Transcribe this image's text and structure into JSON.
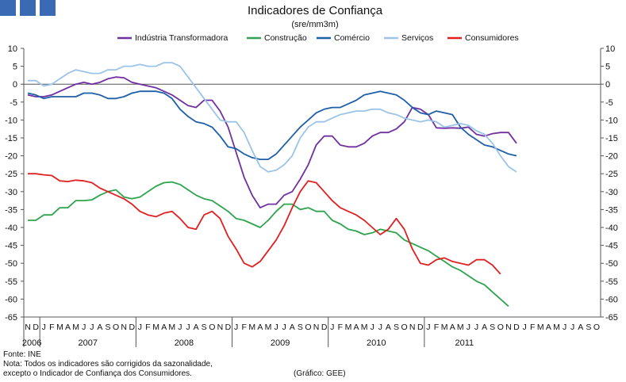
{
  "logo": {
    "squares": 3,
    "color": "#3a6ab3"
  },
  "footer": {
    "source": "Fonte: INE",
    "note1": "Nota: Todos os indicadores são corrigidos da sazonalidade,",
    "note2": "excepto o Indicador de Confiança dos Consumidores.",
    "credit": "(Gráfico: GEE)"
  },
  "chart_data": {
    "type": "line",
    "title": "Indicadores de Confiança",
    "subtitle": "(sre/mm3m)",
    "legend_position": "top",
    "ylim": [
      -65,
      10
    ],
    "yticks": [
      10,
      5,
      0,
      -5,
      -10,
      -15,
      -20,
      -25,
      -30,
      -35,
      -40,
      -45,
      -50,
      -55,
      -60,
      -65
    ],
    "grid": false,
    "month_labels": [
      "N",
      "D",
      "J",
      "F",
      "M",
      "A",
      "M",
      "J",
      "J",
      "A",
      "S",
      "O",
      "N",
      "D",
      "J",
      "F",
      "M",
      "A",
      "M",
      "J",
      "J",
      "A",
      "S",
      "O",
      "N",
      "D",
      "J",
      "F",
      "M",
      "A",
      "M",
      "J",
      "J",
      "A",
      "S",
      "O",
      "N",
      "D",
      "J",
      "F",
      "M",
      "A",
      "M",
      "J",
      "J",
      "A",
      "S",
      "O",
      "N",
      "D",
      "J",
      "F",
      "M",
      "A",
      "M",
      "J",
      "J",
      "A",
      "S",
      "O",
      "N",
      "D",
      "J",
      "F",
      "M",
      "A",
      "M",
      "J",
      "J",
      "A",
      "S",
      "O"
    ],
    "year_labels": [
      {
        "label": "2006",
        "start": 0,
        "end": 1
      },
      {
        "label": "2007",
        "start": 2,
        "end": 13
      },
      {
        "label": "2008",
        "start": 14,
        "end": 25
      },
      {
        "label": "2009",
        "start": 26,
        "end": 37
      },
      {
        "label": "2010",
        "start": 38,
        "end": 49
      },
      {
        "label": "2011",
        "start": 50,
        "end": 59
      }
    ],
    "series": [
      {
        "name": "Indústria Transformadora",
        "color": "#7030a0",
        "values": [
          -3,
          -3.5,
          -3.5,
          -3,
          -2,
          -1,
          0,
          0.5,
          0,
          0.5,
          1.5,
          2,
          1.8,
          0.5,
          0,
          -0.5,
          -1,
          -2,
          -3,
          -4.5,
          -6,
          -6.5,
          -4.5,
          -4.5,
          -7.5,
          -12,
          -19,
          -26,
          -31,
          -34.5,
          -33.5,
          -33.5,
          -31,
          -30,
          -26.5,
          -22.5,
          -17,
          -14.5,
          -14.5,
          -17,
          -17.5,
          -17.5,
          -16.5,
          -14.5,
          -13.5,
          -13.5,
          -12.5,
          -10.5,
          -6.5,
          -7,
          -8.5,
          -12.2,
          -12.3,
          -12.2,
          -12.3,
          -12,
          -14,
          -14.5,
          -13.8,
          -13.5,
          -13.5,
          -16.5
        ]
      },
      {
        "name": "Construção",
        "color": "#2ea44f",
        "values": [
          -38,
          -38,
          -36.5,
          -36.5,
          -34.5,
          -34.5,
          -32.5,
          -32.5,
          -32.3,
          -31,
          -30,
          -29.5,
          -31.5,
          -32,
          -31.5,
          -30,
          -28.5,
          -27.5,
          -27.3,
          -28,
          -29.5,
          -31,
          -32,
          -32.5,
          -34,
          -35.5,
          -37.5,
          -38,
          -39,
          -40,
          -38,
          -35.5,
          -33.5,
          -33.5,
          -35,
          -34.5,
          -35.5,
          -35.5,
          -38,
          -39,
          -40.5,
          -41,
          -42,
          -41.5,
          -40.5,
          -41,
          -41.5,
          -43.5,
          -44.5,
          -45.5,
          -46.5,
          -48,
          -49.5,
          -51,
          -52,
          -53.5,
          -55,
          -56,
          -58,
          -60,
          -62
        ]
      },
      {
        "name": "Comércio",
        "color": "#1f5fa8",
        "values": [
          -2.5,
          -3,
          -4,
          -3.5,
          -3.5,
          -3.5,
          -3.5,
          -2.5,
          -2.5,
          -3,
          -4,
          -4,
          -3.5,
          -2.5,
          -2,
          -2,
          -2,
          -2.5,
          -4,
          -7,
          -9,
          -10.5,
          -11,
          -12,
          -14.5,
          -17.5,
          -18,
          -19.5,
          -20.5,
          -21,
          -21,
          -19.5,
          -17,
          -14.5,
          -12,
          -10,
          -8,
          -7,
          -6.5,
          -6.5,
          -5.5,
          -4.5,
          -3,
          -2.5,
          -2,
          -2.5,
          -3,
          -4.5,
          -6.5,
          -8,
          -8.5,
          -7.5,
          -8,
          -8.5,
          -12,
          -14,
          -15.5,
          -17,
          -17.5,
          -18.5,
          -19.5,
          -20
        ]
      },
      {
        "name": "Serviços",
        "color": "#9cc3e8",
        "values": [
          1,
          1,
          -0.5,
          0,
          1.5,
          3,
          4,
          3.5,
          3,
          3,
          4,
          4,
          5,
          5,
          5.5,
          5,
          5,
          6,
          6,
          5,
          2,
          -1,
          -4,
          -7,
          -10,
          -10.5,
          -10.5,
          -13.5,
          -18.5,
          -23,
          -24.5,
          -24,
          -22.5,
          -20,
          -15,
          -12,
          -10.5,
          -10.5,
          -9.5,
          -8.5,
          -8,
          -7.5,
          -7.5,
          -7,
          -7,
          -8,
          -8.5,
          -9.5,
          -10,
          -10.5,
          -10,
          -10.5,
          -12,
          -11.5,
          -11,
          -11.5,
          -13,
          -14,
          -16.5,
          -20,
          -23,
          -24.5
        ]
      },
      {
        "name": "Consumidores",
        "color": "#e02020",
        "values": [
          -25,
          -25,
          -25.3,
          -25.5,
          -27,
          -27.2,
          -26.8,
          -27,
          -27.5,
          -29,
          -30,
          -31,
          -32,
          -33.5,
          -35.5,
          -36.5,
          -37,
          -36,
          -35.5,
          -37.5,
          -40,
          -40.5,
          -36.5,
          -35.5,
          -37.5,
          -42.5,
          -46,
          -50,
          -51,
          -49.5,
          -46.5,
          -43.5,
          -39.5,
          -34.5,
          -30,
          -27,
          -27.5,
          -30,
          -32.5,
          -34.5,
          -35.5,
          -36.5,
          -38,
          -40,
          -42,
          -40.5,
          -37.5,
          -40.5,
          -46,
          -50,
          -50.5,
          -49,
          -48.5,
          -49.5,
          -50,
          -50.5,
          -49,
          -49,
          -50.5,
          -53
        ]
      }
    ]
  }
}
